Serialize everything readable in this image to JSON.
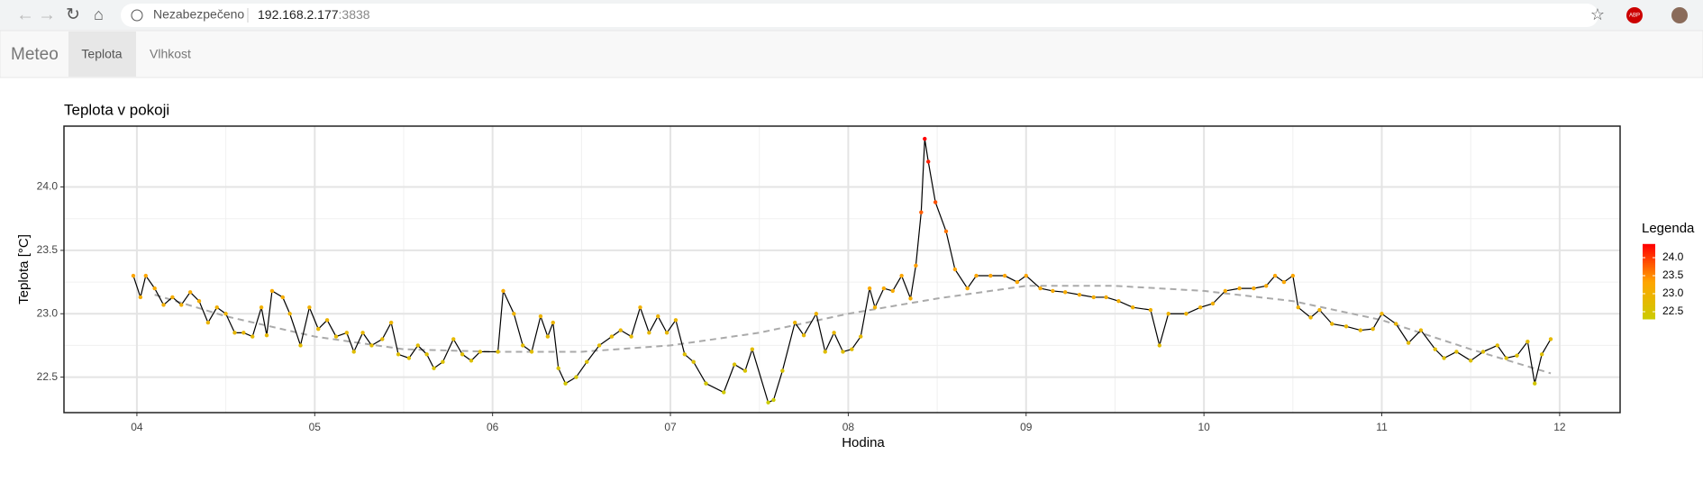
{
  "browser": {
    "security": "Nezabezpečeno",
    "host": "192.168.2.177",
    "port": ":3838",
    "extension": "ABP"
  },
  "nav": {
    "brand": "Meteo",
    "tabs": [
      "Teplota",
      "Vlhkost"
    ]
  },
  "chart_data": {
    "type": "line",
    "title": "Teplota v pokoji",
    "x_label": "Hodina",
    "y_label": "Teplota [°C]",
    "legend_title": "Legenda",
    "x": [
      3.98,
      4.02,
      4.05,
      4.1,
      4.15,
      4.2,
      4.25,
      4.3,
      4.35,
      4.4,
      4.45,
      4.5,
      4.55,
      4.6,
      4.65,
      4.7,
      4.73,
      4.76,
      4.82,
      4.86,
      4.92,
      4.97,
      5.02,
      5.07,
      5.12,
      5.18,
      5.22,
      5.27,
      5.32,
      5.38,
      5.43,
      5.47,
      5.53,
      5.58,
      5.63,
      5.67,
      5.72,
      5.78,
      5.83,
      5.88,
      5.93,
      6.03,
      6.06,
      6.12,
      6.17,
      6.22,
      6.27,
      6.31,
      6.34,
      6.37,
      6.41,
      6.47,
      6.53,
      6.6,
      6.67,
      6.72,
      6.78,
      6.83,
      6.88,
      6.93,
      6.98,
      7.03,
      7.08,
      7.13,
      7.2,
      7.3,
      7.36,
      7.42,
      7.46,
      7.55,
      7.58,
      7.63,
      7.7,
      7.75,
      7.82,
      7.87,
      7.92,
      7.97,
      8.02,
      8.07,
      8.12,
      8.15,
      8.2,
      8.25,
      8.3,
      8.35,
      8.38,
      8.41,
      8.43,
      8.45,
      8.49,
      8.55,
      8.6,
      8.67,
      8.72,
      8.8,
      8.88,
      8.95,
      9.0,
      9.08,
      9.15,
      9.22,
      9.3,
      9.38,
      9.45,
      9.52,
      9.6,
      9.7,
      9.75,
      9.8,
      9.9,
      9.98,
      10.05,
      10.12,
      10.2,
      10.28,
      10.35,
      10.4,
      10.45,
      10.5,
      10.53,
      10.6,
      10.65,
      10.72,
      10.8,
      10.88,
      10.95,
      11.0,
      11.08,
      11.15,
      11.22,
      11.3,
      11.35,
      11.42,
      11.5,
      11.57,
      11.65,
      11.7,
      11.76,
      11.82,
      11.86,
      11.9,
      11.95
    ],
    "series": [
      {
        "color": "#000000",
        "values": [
          23.3,
          23.13,
          23.3,
          23.2,
          23.07,
          23.13,
          23.07,
          23.17,
          23.1,
          22.93,
          23.05,
          23.0,
          22.85,
          22.85,
          22.82,
          23.05,
          22.83,
          23.18,
          23.13,
          23.0,
          22.75,
          23.05,
          22.88,
          22.95,
          22.82,
          22.85,
          22.7,
          22.85,
          22.75,
          22.8,
          22.93,
          22.68,
          22.65,
          22.75,
          22.68,
          22.57,
          22.62,
          22.8,
          22.68,
          22.63,
          22.7,
          22.7,
          23.18,
          23.0,
          22.75,
          22.7,
          22.98,
          22.82,
          22.93,
          22.57,
          22.45,
          22.5,
          22.62,
          22.75,
          22.82,
          22.87,
          22.82,
          23.05,
          22.85,
          22.98,
          22.85,
          22.95,
          22.68,
          22.62,
          22.45,
          22.38,
          22.6,
          22.55,
          22.72,
          22.3,
          22.32,
          22.55,
          22.93,
          22.83,
          23.0,
          22.7,
          22.85,
          22.7,
          22.72,
          22.82,
          23.2,
          23.05,
          23.2,
          23.18,
          23.3,
          23.12,
          23.38,
          23.8,
          24.38,
          24.2,
          23.88,
          23.65,
          23.35,
          23.2,
          23.3,
          23.3,
          23.3,
          23.25,
          23.3,
          23.2,
          23.18,
          23.17,
          23.15,
          23.13,
          23.13,
          23.1,
          23.05,
          23.03,
          22.75,
          23.0,
          23.0,
          23.05,
          23.08,
          23.18,
          23.2,
          23.2,
          23.22,
          23.3,
          23.25,
          23.3,
          23.05,
          22.97,
          23.03,
          22.92,
          22.9,
          22.87,
          22.88,
          23.0,
          22.92,
          22.77,
          22.87,
          22.72,
          22.65,
          22.7,
          22.63,
          22.7,
          22.75,
          22.65,
          22.67,
          22.78,
          22.45,
          22.68,
          22.8
        ]
      }
    ],
    "trend": {
      "color": "#aaaaaa",
      "x": [
        4.1,
        4.5,
        5.0,
        5.5,
        6.0,
        6.5,
        7.0,
        7.5,
        8.0,
        8.5,
        9.0,
        9.5,
        10.0,
        10.5,
        11.0,
        11.5,
        11.95
      ],
      "values": [
        23.15,
        22.98,
        22.82,
        22.72,
        22.7,
        22.7,
        22.75,
        22.85,
        23.0,
        23.12,
        23.22,
        23.22,
        23.18,
        23.1,
        22.95,
        22.72,
        22.53
      ]
    },
    "color_scale": {
      "colors": [
        "#cccc00",
        "#ffa500",
        "#ff0000"
      ],
      "limits": [
        22.3,
        24.38
      ],
      "ticks": [
        22.5,
        {
          "value": 23.0,
          "label": "23.0"
        },
        23.5,
        {
          "value": 24.0,
          "label": "24.0"
        }
      ]
    },
    "xlim": [
      3.59,
      12.34
    ],
    "ylim": [
      22.22,
      24.48
    ],
    "xticks": [
      {
        "value": 4,
        "label": "04"
      },
      {
        "value": 5,
        "label": "05"
      },
      {
        "value": 6,
        "label": "06"
      },
      {
        "value": 7,
        "label": "07"
      },
      {
        "value": 8,
        "label": "08"
      },
      {
        "value": 9,
        "label": "09"
      },
      {
        "value": 10,
        "label": "10"
      },
      {
        "value": 11,
        "label": "11"
      },
      {
        "value": 12,
        "label": "12"
      }
    ],
    "yticks": [
      22.5,
      {
        "value": 23.0,
        "label": "23.0"
      },
      23.5,
      {
        "value": 24.0,
        "label": "24.0"
      }
    ],
    "grid": true
  }
}
